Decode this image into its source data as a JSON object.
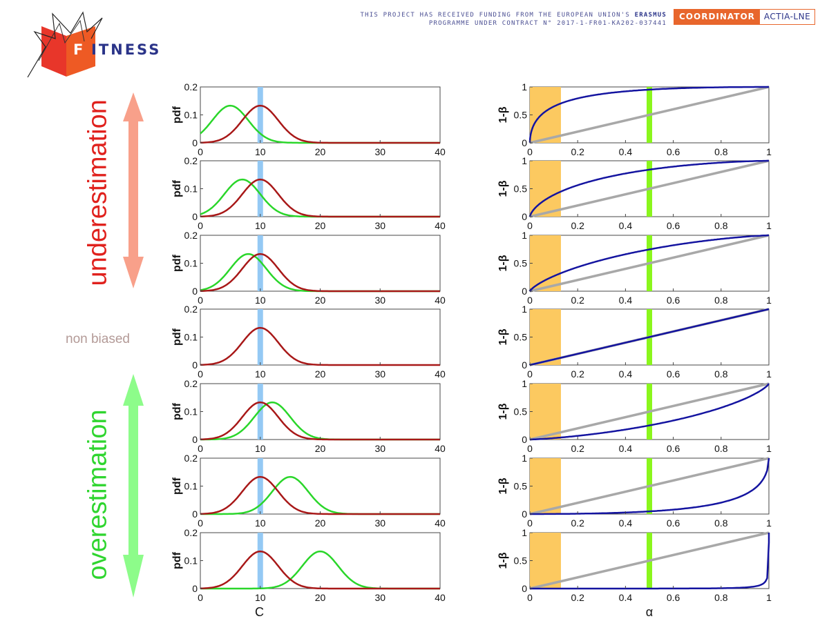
{
  "header": {
    "logo_text": "ITNESS",
    "logo_initial": "F",
    "funding_line1_pre": "THIS PROJECT HAS RECEIVED FUNDING FROM THE EUROPEAN UNION'S ",
    "funding_line1_bold": "ERASMUS",
    "funding_line2": "PROGRAMME UNDER CONTRACT N° 2017-1-FR01-KA202-037441",
    "coordinator_label": "COORDINATOR",
    "coordinator_name": "ACTIA-LNE"
  },
  "labels": {
    "underestimation": "underestimation",
    "non_biased": "non biased",
    "overestimation": "overestimation"
  },
  "colors": {
    "under_arrow": "#f8a08a",
    "under_text": "#e0211d",
    "over_arrow": "#8dfc8a",
    "over_text": "#2fd52f",
    "green_curve": "#2ad62a",
    "red_curve": "#a81818",
    "blue_band": "#94c9f4",
    "roc_curve": "#1414a0",
    "diagonal": "#a8a8a8",
    "orange_band": "#fcc960",
    "lime_band": "#8af61c"
  },
  "chart_data": [
    {
      "type": "line",
      "panel": "pdf",
      "xlabel": "C",
      "ylabel": "pdf",
      "xlim": [
        0,
        40
      ],
      "ylim": [
        0,
        0.2
      ],
      "xticks": [
        "0",
        "10",
        "20",
        "30",
        "40"
      ],
      "yticks": [
        "0",
        "0.1",
        "0.2"
      ],
      "reference": {
        "name": "red",
        "mean": 10,
        "sd": 3,
        "peak": 0.133
      },
      "highlight_band_x": 10,
      "rows": [
        {
          "green_mean": 5,
          "green_sd": 3,
          "green_peak": 0.133
        },
        {
          "green_mean": 7,
          "green_sd": 3,
          "green_peak": 0.133
        },
        {
          "green_mean": 8,
          "green_sd": 3,
          "green_peak": 0.133
        },
        {
          "green_mean": null
        },
        {
          "green_mean": 12,
          "green_sd": 3,
          "green_peak": 0.133
        },
        {
          "green_mean": 15,
          "green_sd": 3,
          "green_peak": 0.133
        },
        {
          "green_mean": 20,
          "green_sd": 3,
          "green_peak": 0.133
        }
      ]
    },
    {
      "type": "line",
      "panel": "roc",
      "xlabel": "α",
      "ylabel": "1-β",
      "xlim": [
        0,
        1
      ],
      "ylim": [
        0,
        1
      ],
      "xticks": [
        "0",
        "0.2",
        "0.4",
        "0.6",
        "0.8",
        "1"
      ],
      "yticks": [
        "0",
        "0.5",
        "1"
      ],
      "shaded_band_x": [
        0,
        0.13
      ],
      "highlight_band_x": 0.5,
      "diagonal": [
        [
          0,
          0
        ],
        [
          1,
          1
        ]
      ],
      "rows_mean_shift": [
        -5,
        -3,
        -2,
        0,
        2,
        5,
        10
      ],
      "sd": 3
    }
  ]
}
